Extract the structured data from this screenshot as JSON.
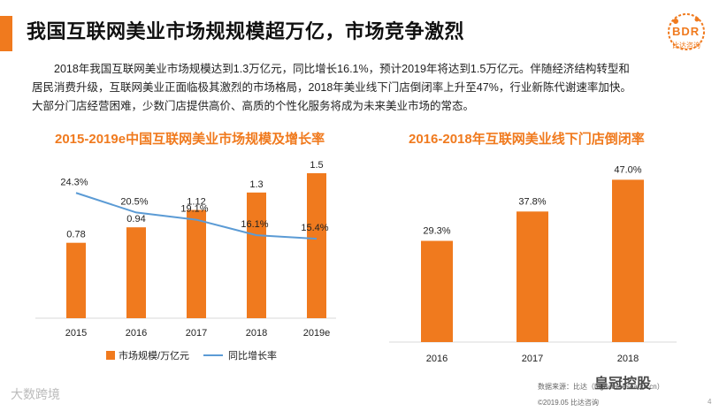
{
  "header": {
    "title": "我国互联网美业市场规规模超万亿，市场竞争激烈",
    "accent_color": "#f07a1e"
  },
  "logo": {
    "text": "BDR",
    "sub": "比达咨询"
  },
  "paragraph": {
    "line1": "2018年我国互联网美业市场规模达到1.3万亿元，同比增长16.1%，预计2019年将达到1.5万亿元。伴随经济结构转型和",
    "line2": "居民消费升级，互联网美业正面临极其激烈的市场格局，2018年美业线下门店倒闭率上升至47%，行业新陈代谢速率加快。",
    "line3": "大部分门店经营困难，少数门店提供高价、高质的个性化服务将成为未来美业市场的常态。"
  },
  "chart_data": [
    {
      "type": "bar+line",
      "title": "2015-2019e中国互联网美业市场规模及增长率",
      "categories": [
        "2015",
        "2016",
        "2017",
        "2018",
        "2019e"
      ],
      "series": [
        {
          "name": "市场规模/万亿元",
          "type": "bar",
          "color": "#f07a1e",
          "values": [
            0.78,
            0.94,
            1.12,
            1.3,
            1.5
          ],
          "labels": [
            "0.78",
            "0.94",
            "1.12",
            "1.3",
            "1.5"
          ]
        },
        {
          "name": "同比增长率",
          "type": "line",
          "color": "#5b9bd5",
          "values": [
            24.3,
            20.5,
            19.1,
            16.1,
            15.4
          ],
          "labels": [
            "24.3%",
            "20.5%",
            "19.1%",
            "16.1%",
            "15.4%"
          ]
        }
      ],
      "bar_ylim": [
        0,
        1.6
      ],
      "line_ylim": [
        0,
        30
      ],
      "legend_position": "bottom"
    },
    {
      "type": "bar",
      "title": "2016-2018年互联网美业线下门店倒闭率",
      "categories": [
        "2016",
        "2017",
        "2018"
      ],
      "values": [
        29.3,
        37.8,
        47.0
      ],
      "labels": [
        "29.3%",
        "37.8%",
        "47.0%"
      ],
      "ylim": [
        0,
        50
      ],
      "color": "#f07a1e"
    }
  ],
  "footer": {
    "source": "数据来源：比达（bigdata-research.cn）",
    "copyright": "©2019.05 比达咨询",
    "page": "4"
  },
  "watermarks": {
    "left": "大数跨境",
    "right": "皇冠控股"
  }
}
